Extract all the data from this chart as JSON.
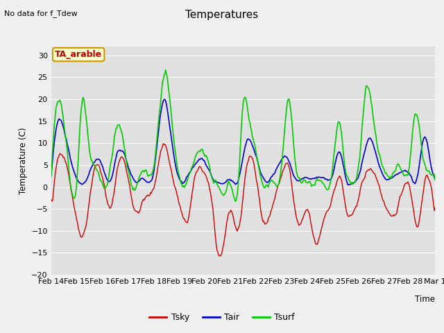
{
  "title": "Temperatures",
  "xlabel": "Time",
  "ylabel": "Temperature (C)",
  "note": "No data for f_Tdew",
  "label_text": "TA_arable",
  "ylim": [
    -20,
    32
  ],
  "yticks": [
    -20,
    -15,
    -10,
    -5,
    0,
    5,
    10,
    15,
    20,
    25,
    30
  ],
  "date_labels": [
    "Feb 14",
    "Feb 15",
    "Feb 16",
    "Feb 17",
    "Feb 18",
    "Feb 19",
    "Feb 20",
    "Feb 21",
    "Feb 22",
    "Feb 23",
    "Feb 24",
    "Feb 25",
    "Feb 26",
    "Feb 27",
    "Feb 28",
    "Mar 1"
  ],
  "line_colors": {
    "Tsky": "#cc0000",
    "Tair": "#0000cc",
    "Tsurf": "#00cc00"
  },
  "line_widths": {
    "Tsky": 1.0,
    "Tair": 1.2,
    "Tsurf": 1.2
  },
  "fig_bg_color": "#f0f0f0",
  "axes_bg_color": "#e0e0e0",
  "grid_color": "#ffffff",
  "legend_box_facecolor": "#ffffcc",
  "legend_box_edgecolor": "#cc9900",
  "n_points": 480
}
